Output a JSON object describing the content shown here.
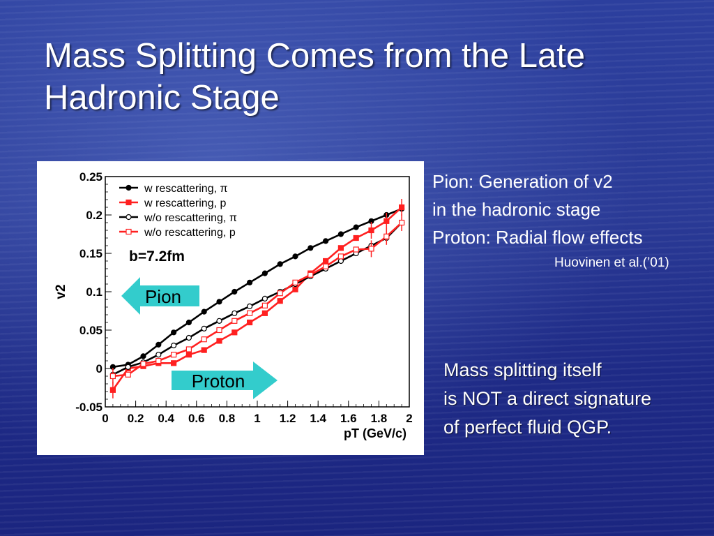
{
  "slide": {
    "title_lines": [
      "Mass Splitting Comes from the Late",
      "Hadronic Stage"
    ],
    "note_top_lines": [
      "Pion: Generation of v2",
      "in the hadronic stage",
      "Proton: Radial flow effects"
    ],
    "citation": "Huovinen et al.(’01)",
    "note_bottom_lines": [
      "Mass splitting itself",
      "is NOT a direct signature",
      "of perfect fluid QGP."
    ],
    "arrow_pion_label": "Pion",
    "arrow_proton_label": "Proton",
    "colors": {
      "arrow_fill": "#33cccc",
      "text": "#ffffff"
    }
  },
  "chart_data": {
    "type": "line",
    "xlabel": "pT (GeV/c)",
    "ylabel": "v2",
    "annotation": "b=7.2fm",
    "xlim": [
      0,
      2
    ],
    "ylim": [
      -0.05,
      0.25
    ],
    "x_ticks": [
      "0",
      "0.2",
      "0.4",
      "0.6",
      "0.8",
      "1",
      "1.2",
      "1.4",
      "1.6",
      "1.8",
      "2"
    ],
    "y_ticks": [
      "-0.05",
      "0",
      "0.05",
      "0.1",
      "0.15",
      "0.2",
      "0.25"
    ],
    "x_tick_values": [
      0,
      0.2,
      0.4,
      0.6,
      0.8,
      1.0,
      1.2,
      1.4,
      1.6,
      1.8,
      2.0
    ],
    "y_tick_values": [
      -0.05,
      0,
      0.05,
      0.1,
      0.15,
      0.2,
      0.25
    ],
    "series": [
      {
        "name": "w rescattering, π",
        "color": "#000000",
        "marker": "circle",
        "filled": true,
        "x": [
          0.05,
          0.15,
          0.25,
          0.35,
          0.45,
          0.55,
          0.65,
          0.75,
          0.85,
          0.95,
          1.05,
          1.15,
          1.25,
          1.35,
          1.45,
          1.55,
          1.65,
          1.75,
          1.85,
          1.95
        ],
        "y": [
          0.002,
          0.005,
          0.016,
          0.031,
          0.047,
          0.06,
          0.074,
          0.087,
          0.1,
          0.112,
          0.124,
          0.136,
          0.146,
          0.157,
          0.166,
          0.175,
          0.184,
          0.192,
          0.2,
          0.208
        ]
      },
      {
        "name": "w rescattering, p",
        "color": "#ff2020",
        "marker": "square",
        "filled": true,
        "x": [
          0.05,
          0.15,
          0.25,
          0.35,
          0.45,
          0.55,
          0.65,
          0.75,
          0.85,
          0.95,
          1.05,
          1.15,
          1.25,
          1.35,
          1.45,
          1.55,
          1.65,
          1.75,
          1.85,
          1.95
        ],
        "y": [
          -0.028,
          0.0,
          0.003,
          0.007,
          0.007,
          0.018,
          0.024,
          0.036,
          0.047,
          0.06,
          0.072,
          0.088,
          0.103,
          0.124,
          0.14,
          0.157,
          0.17,
          0.18,
          0.192,
          0.21
        ]
      },
      {
        "name": "w/o rescattering, π",
        "color": "#000000",
        "marker": "circle",
        "filled": false,
        "x": [
          0.05,
          0.15,
          0.25,
          0.35,
          0.45,
          0.55,
          0.65,
          0.75,
          0.85,
          0.95,
          1.05,
          1.15,
          1.25,
          1.35,
          1.45,
          1.55,
          1.65,
          1.75,
          1.85,
          1.95
        ],
        "y": [
          -0.008,
          0.002,
          0.008,
          0.018,
          0.03,
          0.04,
          0.052,
          0.062,
          0.072,
          0.081,
          0.091,
          0.1,
          0.11,
          0.12,
          0.13,
          0.14,
          0.15,
          0.16,
          0.17,
          0.19
        ]
      },
      {
        "name": "w/o rescattering, p",
        "color": "#ff2020",
        "marker": "square",
        "filled": false,
        "x": [
          0.05,
          0.15,
          0.25,
          0.35,
          0.45,
          0.55,
          0.65,
          0.75,
          0.85,
          0.95,
          1.05,
          1.15,
          1.25,
          1.35,
          1.45,
          1.55,
          1.65,
          1.75,
          1.85,
          1.95
        ],
        "y": [
          -0.01,
          -0.008,
          0.006,
          0.01,
          0.018,
          0.025,
          0.038,
          0.05,
          0.062,
          0.072,
          0.082,
          0.098,
          0.112,
          0.122,
          0.133,
          0.146,
          0.155,
          0.156,
          0.172,
          0.19
        ]
      }
    ]
  }
}
